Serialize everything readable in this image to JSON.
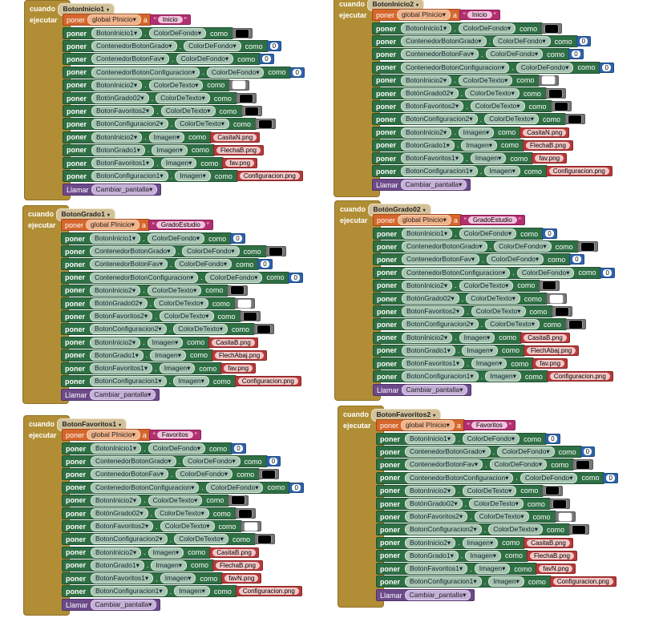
{
  "labels": {
    "cuando": "cuando",
    "ejecutar": "ejecutar",
    "poner": "poner",
    "como": "como",
    "a": "a",
    "llamar": "Llamar",
    "clic": ".Clic",
    "procedure": "Cambiar_pantalla",
    "global_var": "global PInicio"
  },
  "colors": {
    "black": "#000000",
    "white": "#ffffff",
    "event": "#b18e35",
    "setter": "#2f6f44",
    "text_block": "#b63a3a",
    "number_block": "#2e63a9",
    "global_set": "#d5662c",
    "procedure_call": "#6c4a8a"
  },
  "blocks": [
    {
      "event": "BotonInicio1",
      "global_value": "Inicio",
      "rows": [
        {
          "c": "BotonInicio1",
          "p": "ColorDeFondo",
          "t": "color",
          "v": "#000000"
        },
        {
          "c": "ContenedorBotonGrado",
          "p": "ColorDeFondo",
          "t": "num",
          "v": "0"
        },
        {
          "c": "ContenedorBotonFav",
          "p": "ColorDeFondo",
          "t": "num",
          "v": "0"
        },
        {
          "c": "ContenedorBotonConfiguracion",
          "p": "ColorDeFondo",
          "t": "num",
          "v": "0"
        },
        {
          "c": "BotonInicio2",
          "p": "ColorDeTexto",
          "t": "color",
          "v": "#ffffff"
        },
        {
          "c": "BotónGrado02",
          "p": "ColorDeTexto",
          "t": "color",
          "v": "#000000"
        },
        {
          "c": "BotonFavoritos2",
          "p": "ColorDeTexto",
          "t": "color",
          "v": "#000000"
        },
        {
          "c": "BotonConfiguracion2",
          "p": "ColorDeTexto",
          "t": "color",
          "v": "#000000"
        },
        {
          "c": "BotonInicio2",
          "p": "Imagen",
          "t": "txt",
          "v": "CasitaN.png"
        },
        {
          "c": "BotonGrado1",
          "p": "Imagen",
          "t": "txt",
          "v": "FlechaB.png"
        },
        {
          "c": "BotonFavoritos1",
          "p": "Imagen",
          "t": "txt",
          "v": "fav.png"
        },
        {
          "c": "BotonConfiguracion1",
          "p": "Imagen",
          "t": "txt",
          "v": "Configuracion.png"
        }
      ]
    },
    {
      "event": "BotonInicio2",
      "global_value": "Inicio",
      "rows": [
        {
          "c": "BotonInicio1",
          "p": "ColorDeFondo",
          "t": "color",
          "v": "#000000"
        },
        {
          "c": "ContenedorBotonGrado",
          "p": "ColorDeFondo",
          "t": "num",
          "v": "0"
        },
        {
          "c": "ContenedorBotonFav",
          "p": "ColorDeFondo",
          "t": "num",
          "v": "0"
        },
        {
          "c": "ContenedorBotonConfiguracion",
          "p": "ColorDeFondo",
          "t": "num",
          "v": "0"
        },
        {
          "c": "BotonInicio2",
          "p": "ColorDeTexto",
          "t": "color",
          "v": "#ffffff"
        },
        {
          "c": "BotónGrado02",
          "p": "ColorDeTexto",
          "t": "color",
          "v": "#000000"
        },
        {
          "c": "BotonFavoritos2",
          "p": "ColorDeTexto",
          "t": "color",
          "v": "#000000"
        },
        {
          "c": "BotonConfiguracion2",
          "p": "ColorDeTexto",
          "t": "color",
          "v": "#000000"
        },
        {
          "c": "BotonInicio2",
          "p": "Imagen",
          "t": "txt",
          "v": "CasitaN.png"
        },
        {
          "c": "BotonGrado1",
          "p": "Imagen",
          "t": "txt",
          "v": "FlechaB.png"
        },
        {
          "c": "BotonFavoritos1",
          "p": "Imagen",
          "t": "txt",
          "v": "fav.png"
        },
        {
          "c": "BotonConfiguracion1",
          "p": "Imagen",
          "t": "txt",
          "v": "Configuracion.png"
        }
      ]
    },
    {
      "event": "BotonGrado1",
      "global_value": "GradoEstudio",
      "rows": [
        {
          "c": "BotonInicio1",
          "p": "ColorDeFondo",
          "t": "num",
          "v": "0"
        },
        {
          "c": "ContenedorBotonGrado",
          "p": "ColorDeFondo",
          "t": "color",
          "v": "#000000"
        },
        {
          "c": "ContenedorBotonFav",
          "p": "ColorDeFondo",
          "t": "num",
          "v": "0"
        },
        {
          "c": "ContenedorBotonConfiguracion",
          "p": "ColorDeFondo",
          "t": "num",
          "v": "0"
        },
        {
          "c": "BotonInicio2",
          "p": "ColorDeTexto",
          "t": "color",
          "v": "#000000"
        },
        {
          "c": "BotónGrado02",
          "p": "ColorDeTexto",
          "t": "color",
          "v": "#ffffff"
        },
        {
          "c": "BotonFavoritos2",
          "p": "ColorDeTexto",
          "t": "color",
          "v": "#000000"
        },
        {
          "c": "BotonConfiguracion2",
          "p": "ColorDeTexto",
          "t": "color",
          "v": "#000000"
        },
        {
          "c": "BotonInicio2",
          "p": "Imagen",
          "t": "txt",
          "v": "CasitaB.png"
        },
        {
          "c": "BotonGrado1",
          "p": "Imagen",
          "t": "txt",
          "v": "FlechAbaj.png"
        },
        {
          "c": "BotonFavoritos1",
          "p": "Imagen",
          "t": "txt",
          "v": "fav.png"
        },
        {
          "c": "BotonConfiguracion1",
          "p": "Imagen",
          "t": "txt",
          "v": "Configuracion.png"
        }
      ]
    },
    {
      "event": "BotónGrado02",
      "global_value": "GradoEstudio",
      "rows": [
        {
          "c": "BotonInicio1",
          "p": "ColorDeFondo",
          "t": "num",
          "v": "0"
        },
        {
          "c": "ContenedorBotonGrado",
          "p": "ColorDeFondo",
          "t": "color",
          "v": "#000000"
        },
        {
          "c": "ContenedorBotonFav",
          "p": "ColorDeFondo",
          "t": "num",
          "v": "0"
        },
        {
          "c": "ContenedorBotonConfiguracion",
          "p": "ColorDeFondo",
          "t": "num",
          "v": "0"
        },
        {
          "c": "BotonInicio2",
          "p": "ColorDeTexto",
          "t": "color",
          "v": "#000000"
        },
        {
          "c": "BotónGrado02",
          "p": "ColorDeTexto",
          "t": "color",
          "v": "#ffffff"
        },
        {
          "c": "BotonFavoritos2",
          "p": "ColorDeTexto",
          "t": "color",
          "v": "#000000"
        },
        {
          "c": "BotonConfiguracion2",
          "p": "ColorDeTexto",
          "t": "color",
          "v": "#000000"
        },
        {
          "c": "BotonInicio2",
          "p": "Imagen",
          "t": "txt",
          "v": "CasitaB.png"
        },
        {
          "c": "BotonGrado1",
          "p": "Imagen",
          "t": "txt",
          "v": "FlechAbaj.png"
        },
        {
          "c": "BotonFavoritos1",
          "p": "Imagen",
          "t": "txt",
          "v": "fav.png"
        },
        {
          "c": "BotonConfiguracion1",
          "p": "Imagen",
          "t": "txt",
          "v": "Configuracion.png"
        }
      ]
    },
    {
      "event": "BotonFavoritos1",
      "global_value": "Favoritos",
      "rows": [
        {
          "c": "BotonInicio1",
          "p": "ColorDeFondo",
          "t": "num",
          "v": "0"
        },
        {
          "c": "ContenedorBotonGrado",
          "p": "ColorDeFondo",
          "t": "num",
          "v": "0"
        },
        {
          "c": "ContenedorBotonFav",
          "p": "ColorDeFondo",
          "t": "color",
          "v": "#000000"
        },
        {
          "c": "ContenedorBotonConfiguracion",
          "p": "ColorDeFondo",
          "t": "num",
          "v": "0"
        },
        {
          "c": "BotonInicio2",
          "p": "ColorDeTexto",
          "t": "color",
          "v": "#000000"
        },
        {
          "c": "BotónGrado02",
          "p": "ColorDeTexto",
          "t": "color",
          "v": "#000000"
        },
        {
          "c": "BotonFavoritos2",
          "p": "ColorDeTexto",
          "t": "color",
          "v": "#ffffff"
        },
        {
          "c": "BotonConfiguracion2",
          "p": "ColorDeTexto",
          "t": "color",
          "v": "#000000"
        },
        {
          "c": "BotonInicio2",
          "p": "Imagen",
          "t": "txt",
          "v": "CasitaB.png"
        },
        {
          "c": "BotonGrado1",
          "p": "Imagen",
          "t": "txt",
          "v": "FlechaB.png"
        },
        {
          "c": "BotonFavoritos1",
          "p": "Imagen",
          "t": "txt",
          "v": "favN.png"
        },
        {
          "c": "BotonConfiguracion1",
          "p": "Imagen",
          "t": "txt",
          "v": "Configuracion.png"
        }
      ]
    },
    {
      "event": "BotonFavoritos2",
      "global_value": "Favoritos",
      "rows": [
        {
          "c": "BotonInicio1",
          "p": "ColorDeFondo",
          "t": "num",
          "v": "0"
        },
        {
          "c": "ContenedorBotonGrado",
          "p": "ColorDeFondo",
          "t": "num",
          "v": "0"
        },
        {
          "c": "ContenedorBotonFav",
          "p": "ColorDeFondo",
          "t": "color",
          "v": "#000000"
        },
        {
          "c": "ContenedorBotonConfiguracion",
          "p": "ColorDeFondo",
          "t": "num",
          "v": "0"
        },
        {
          "c": "BotonInicio2",
          "p": "ColorDeTexto",
          "t": "color",
          "v": "#000000"
        },
        {
          "c": "BotónGrado02",
          "p": "ColorDeTexto",
          "t": "color",
          "v": "#000000"
        },
        {
          "c": "BotonFavoritos2",
          "p": "ColorDeTexto",
          "t": "color",
          "v": "#ffffff"
        },
        {
          "c": "BotonConfiguracion2",
          "p": "ColorDeTexto",
          "t": "color",
          "v": "#000000"
        },
        {
          "c": "BotonInicio2",
          "p": "Imagen",
          "t": "txt",
          "v": "CasitaB.png"
        },
        {
          "c": "BotonGrado1",
          "p": "Imagen",
          "t": "txt",
          "v": "FlechaB.png"
        },
        {
          "c": "BotonFavoritos1",
          "p": "Imagen",
          "t": "txt",
          "v": "favN.png"
        },
        {
          "c": "BotonConfiguracion1",
          "p": "Imagen",
          "t": "txt",
          "v": "Configuracion.png"
        }
      ]
    }
  ]
}
